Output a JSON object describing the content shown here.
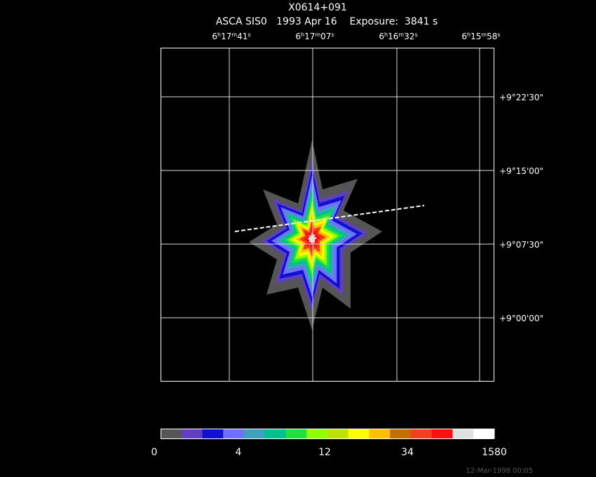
{
  "header": {
    "title": "X0614+091",
    "subtitle": "ASCA SIS0   1993 Apr 16    Exposure:  3841 s"
  },
  "ra_labels": [
    [
      {
        "text": "6"
      },
      {
        "text": "h",
        "sup": true
      },
      {
        "text": "17"
      },
      {
        "text": "m",
        "sup": true
      },
      {
        "text": "41"
      },
      {
        "text": "s",
        "sup": true
      }
    ],
    [
      {
        "text": "6"
      },
      {
        "text": "h",
        "sup": true
      },
      {
        "text": "17"
      },
      {
        "text": "m",
        "sup": true
      },
      {
        "text": "07"
      },
      {
        "text": "s",
        "sup": true
      }
    ],
    [
      {
        "text": "6"
      },
      {
        "text": "h",
        "sup": true
      },
      {
        "text": "16"
      },
      {
        "text": "m",
        "sup": true
      },
      {
        "text": "32"
      },
      {
        "text": "s",
        "sup": true
      }
    ],
    [
      {
        "text": "6"
      },
      {
        "text": "h",
        "sup": true
      },
      {
        "text": "15"
      },
      {
        "text": "m",
        "sup": true
      },
      {
        "text": "58"
      },
      {
        "text": "s",
        "sup": true
      }
    ]
  ],
  "dec_labels": [
    "+9°22'30\"",
    "+9°15'00\"",
    "+9°07'30\"",
    "+9°00'00\""
  ],
  "colorbar": {
    "colors": [
      "#555555",
      "#6040c0",
      "#1010d0",
      "#7070ff",
      "#40a0c0",
      "#00c090",
      "#20e040",
      "#90ff00",
      "#c0e000",
      "#ffff00",
      "#ffc000",
      "#c07000",
      "#f04020",
      "#ff1010",
      "#e0e0e0",
      "#ffffff"
    ],
    "labels": [
      "0",
      "4",
      "12",
      "34",
      "1580"
    ]
  },
  "footer": {
    "timestamp": "12-Mar-1998 00:05"
  }
}
